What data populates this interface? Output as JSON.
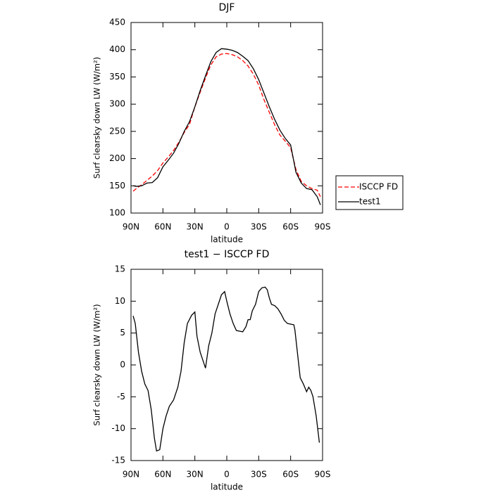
{
  "chart_data": [
    {
      "type": "line",
      "title": "DJF",
      "x_label": "latitude",
      "y_label": "Surf clearsky down LW (W/m²)",
      "x": [
        88,
        85,
        80,
        75,
        70,
        65,
        60,
        55,
        50,
        45,
        40,
        35,
        30,
        25,
        20,
        15,
        10,
        5,
        0,
        -5,
        -10,
        -15,
        -20,
        -25,
        -30,
        -35,
        -40,
        -45,
        -50,
        -55,
        -60,
        -65,
        -70,
        -75,
        -80,
        -85,
        -88
      ],
      "series": [
        {
          "name": "ISCCP FD",
          "color": "#ff0000",
          "dashed": true,
          "values": [
            140,
            145,
            152,
            160,
            168,
            178,
            192,
            203,
            215,
            230,
            248,
            263,
            295,
            322,
            348,
            372,
            387,
            392,
            393,
            391,
            387,
            380,
            370,
            355,
            335,
            308,
            285,
            262,
            243,
            232,
            220,
            180,
            158,
            150,
            145,
            142,
            130
          ]
        },
        {
          "name": "test1",
          "color": "#000000",
          "dashed": false,
          "values": [
            150,
            149,
            150,
            155,
            156,
            165,
            185,
            197,
            210,
            228,
            250,
            268,
            295,
            325,
            352,
            378,
            395,
            402,
            401,
            399,
            395,
            388,
            380,
            365,
            345,
            320,
            295,
            272,
            252,
            237,
            225,
            175,
            155,
            145,
            143,
            130,
            115
          ]
        }
      ],
      "xlim": [
        90,
        -90
      ],
      "xticks": [
        {
          "value": 90,
          "label": "90N"
        },
        {
          "value": 60,
          "label": "60N"
        },
        {
          "value": 30,
          "label": "30N"
        },
        0,
        {
          "value": -30,
          "label": "30S"
        },
        {
          "value": -60,
          "label": "60S"
        },
        {
          "value": -90,
          "label": "90S"
        }
      ],
      "ylim": [
        100,
        450
      ],
      "yticks": [
        100,
        150,
        200,
        250,
        300,
        350,
        400,
        450
      ],
      "legend": "right"
    },
    {
      "type": "line",
      "title": "test1 − ISCCP FD",
      "x_label": "latitude",
      "y_label": "Surf clearsky down LW (W/m²)",
      "x": [
        88,
        86,
        83,
        80,
        77,
        74,
        71,
        68,
        66,
        63,
        60,
        57,
        54,
        50,
        46,
        43,
        40,
        37,
        33,
        30,
        28,
        25,
        22,
        20,
        17,
        14,
        11,
        8,
        5,
        2,
        0,
        -3,
        -6,
        -9,
        -12,
        -15,
        -18,
        -20,
        -22,
        -24,
        -27,
        -30,
        -33,
        -36,
        -38,
        -40,
        -42,
        -45,
        -48,
        -51,
        -54,
        -57,
        -60,
        -63,
        -64,
        -67,
        -69,
        -72,
        -75,
        -77,
        -79,
        -81,
        -84,
        -87
      ],
      "color": "#000000",
      "values": [
        7.7,
        6.5,
        2,
        -1,
        -3,
        -4,
        -7,
        -11.5,
        -13.5,
        -13.3,
        -10,
        -8,
        -6.5,
        -5.5,
        -3.5,
        -1,
        3.5,
        6.5,
        7.8,
        8.3,
        4.5,
        2,
        0.5,
        -0.5,
        3,
        5,
        8,
        9.5,
        11,
        11.5,
        10,
        8,
        6.5,
        5.4,
        5.3,
        5.2,
        6,
        7.1,
        7.1,
        8.5,
        9.5,
        11.5,
        12.1,
        12.2,
        11.8,
        10.5,
        9.5,
        9.3,
        8.8,
        8,
        7,
        6.5,
        6.4,
        6.3,
        5.5,
        1,
        -2,
        -3,
        -4.2,
        -3.5,
        -4,
        -5,
        -8,
        -12.2
      ],
      "xlim": [
        90,
        -90
      ],
      "xticks": [
        {
          "value": 90,
          "label": "90N"
        },
        {
          "value": 60,
          "label": "60N"
        },
        {
          "value": 30,
          "label": "30N"
        },
        0,
        {
          "value": -30,
          "label": "30S"
        },
        {
          "value": -60,
          "label": "60S"
        },
        {
          "value": -90,
          "label": "90S"
        }
      ],
      "ylim": [
        -15,
        15
      ],
      "yticks": [
        -15,
        -10,
        -5,
        0,
        5,
        10,
        15
      ]
    }
  ]
}
